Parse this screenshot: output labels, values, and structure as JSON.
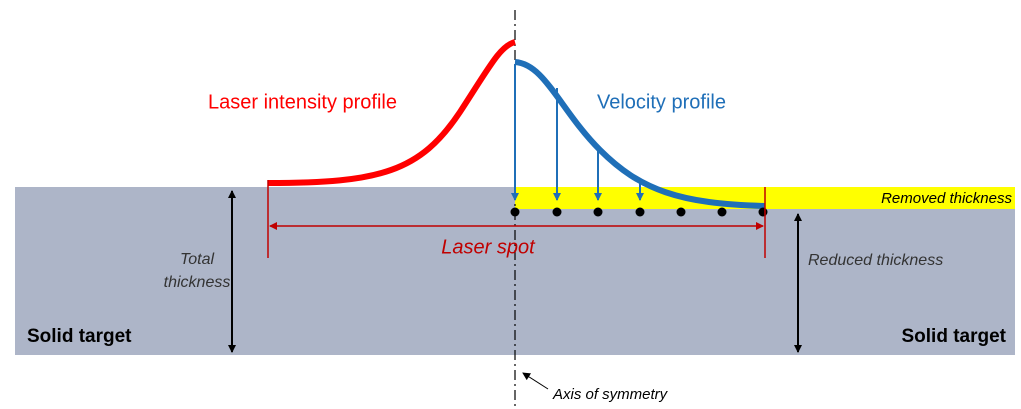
{
  "labels": {
    "laser_intensity_profile": "Laser intensity profile",
    "velocity_profile": "Velocity profile",
    "removed_thickness": "Removed thickness",
    "laser_spot": "Laser spot",
    "total_thickness": [
      "Total",
      "thickness"
    ],
    "reduced_thickness": "Reduced thickness",
    "solid_target_left": "Solid target",
    "solid_target_right": "Solid target",
    "axis_of_symmetry": "Axis of symmetry"
  }
}
